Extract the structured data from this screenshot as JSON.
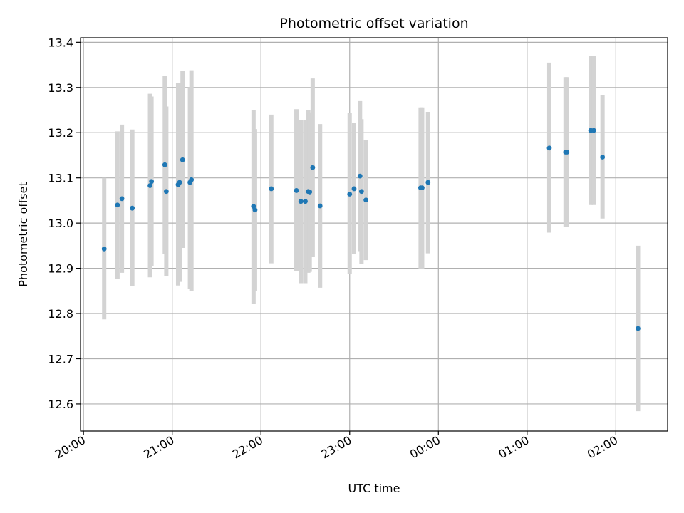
{
  "chart_data": {
    "type": "scatter",
    "title": "Photometric offset variation",
    "xlabel": "UTC time",
    "ylabel": "Photometric offset",
    "x_ticks": [
      "20:00",
      "21:00",
      "22:00",
      "23:00",
      "00:00",
      "01:00",
      "02:00"
    ],
    "x_tick_minutes": [
      0,
      60,
      120,
      180,
      240,
      300,
      360
    ],
    "x_start_label": "20:00",
    "xlim_minutes": [
      -2,
      395
    ],
    "y_ticks": [
      "12.6",
      "12.7",
      "12.8",
      "12.9",
      "13.0",
      "13.1",
      "13.2",
      "13.3",
      "13.4"
    ],
    "ylim": [
      12.54,
      13.41
    ],
    "grid": true,
    "colors": {
      "point": "#1f77b4",
      "errorbar": "#d3d3d3",
      "grid": "#b0b0b0"
    },
    "points": [
      {
        "x": "20:14",
        "y": 12.943,
        "err_low": 12.787,
        "err_high": 13.1
      },
      {
        "x": "20:23",
        "y": 13.04,
        "err_low": 12.877,
        "err_high": 13.203
      },
      {
        "x": "20:26",
        "y": 13.054,
        "err_low": 12.89,
        "err_high": 13.218
      },
      {
        "x": "20:33",
        "y": 13.033,
        "err_low": 12.86,
        "err_high": 13.207
      },
      {
        "x": "20:45",
        "y": 13.083,
        "err_low": 12.88,
        "err_high": 13.286
      },
      {
        "x": "20:46",
        "y": 13.092,
        "err_low": 12.905,
        "err_high": 13.28
      },
      {
        "x": "20:55",
        "y": 13.129,
        "err_low": 12.932,
        "err_high": 13.326
      },
      {
        "x": "20:56",
        "y": 13.07,
        "err_low": 12.882,
        "err_high": 13.258
      },
      {
        "x": "21:04",
        "y": 13.085,
        "err_low": 12.862,
        "err_high": 13.31
      },
      {
        "x": "21:05",
        "y": 13.09,
        "err_low": 12.87,
        "err_high": 13.31
      },
      {
        "x": "21:07",
        "y": 13.14,
        "err_low": 12.945,
        "err_high": 13.336
      },
      {
        "x": "21:12",
        "y": 13.09,
        "err_low": 12.855,
        "err_high": 13.3
      },
      {
        "x": "21:13",
        "y": 13.096,
        "err_low": 12.85,
        "err_high": 13.338
      },
      {
        "x": "21:55",
        "y": 13.037,
        "err_low": 12.822,
        "err_high": 13.25
      },
      {
        "x": "21:56",
        "y": 13.029,
        "err_low": 12.85,
        "err_high": 13.208
      },
      {
        "x": "22:07",
        "y": 13.076,
        "err_low": 12.911,
        "err_high": 13.24
      },
      {
        "x": "22:24",
        "y": 13.072,
        "err_low": 12.893,
        "err_high": 13.252
      },
      {
        "x": "22:27",
        "y": 13.048,
        "err_low": 12.867,
        "err_high": 13.228
      },
      {
        "x": "22:30",
        "y": 13.048,
        "err_low": 12.867,
        "err_high": 13.228
      },
      {
        "x": "22:32",
        "y": 13.07,
        "err_low": 12.89,
        "err_high": 13.25
      },
      {
        "x": "22:33",
        "y": 13.069,
        "err_low": 12.892,
        "err_high": 13.245
      },
      {
        "x": "22:35",
        "y": 13.123,
        "err_low": 12.925,
        "err_high": 13.32
      },
      {
        "x": "22:40",
        "y": 13.038,
        "err_low": 12.857,
        "err_high": 13.219
      },
      {
        "x": "23:00",
        "y": 13.064,
        "err_low": 12.887,
        "err_high": 13.243
      },
      {
        "x": "23:03",
        "y": 13.076,
        "err_low": 12.931,
        "err_high": 13.222
      },
      {
        "x": "23:07",
        "y": 13.104,
        "err_low": 12.938,
        "err_high": 13.27
      },
      {
        "x": "23:08",
        "y": 13.07,
        "err_low": 12.91,
        "err_high": 13.23
      },
      {
        "x": "23:11",
        "y": 13.051,
        "err_low": 12.918,
        "err_high": 13.184
      },
      {
        "x": "23:48",
        "y": 13.078,
        "err_low": 12.899,
        "err_high": 13.256
      },
      {
        "x": "23:49",
        "y": 13.078,
        "err_low": 12.899,
        "err_high": 13.256
      },
      {
        "x": "23:53",
        "y": 13.09,
        "err_low": 12.933,
        "err_high": 13.246
      },
      {
        "x": "01:15",
        "y": 13.166,
        "err_low": 12.979,
        "err_high": 13.355
      },
      {
        "x": "01:26",
        "y": 13.157,
        "err_low": 12.992,
        "err_high": 13.323
      },
      {
        "x": "01:27",
        "y": 13.157,
        "err_low": 12.992,
        "err_high": 13.323
      },
      {
        "x": "01:43",
        "y": 13.205,
        "err_low": 13.04,
        "err_high": 13.37
      },
      {
        "x": "01:45",
        "y": 13.205,
        "err_low": 13.04,
        "err_high": 13.37
      },
      {
        "x": "01:51",
        "y": 13.146,
        "err_low": 13.01,
        "err_high": 13.283
      },
      {
        "x": "02:15",
        "y": 12.767,
        "err_low": 12.584,
        "err_high": 12.95
      }
    ]
  }
}
